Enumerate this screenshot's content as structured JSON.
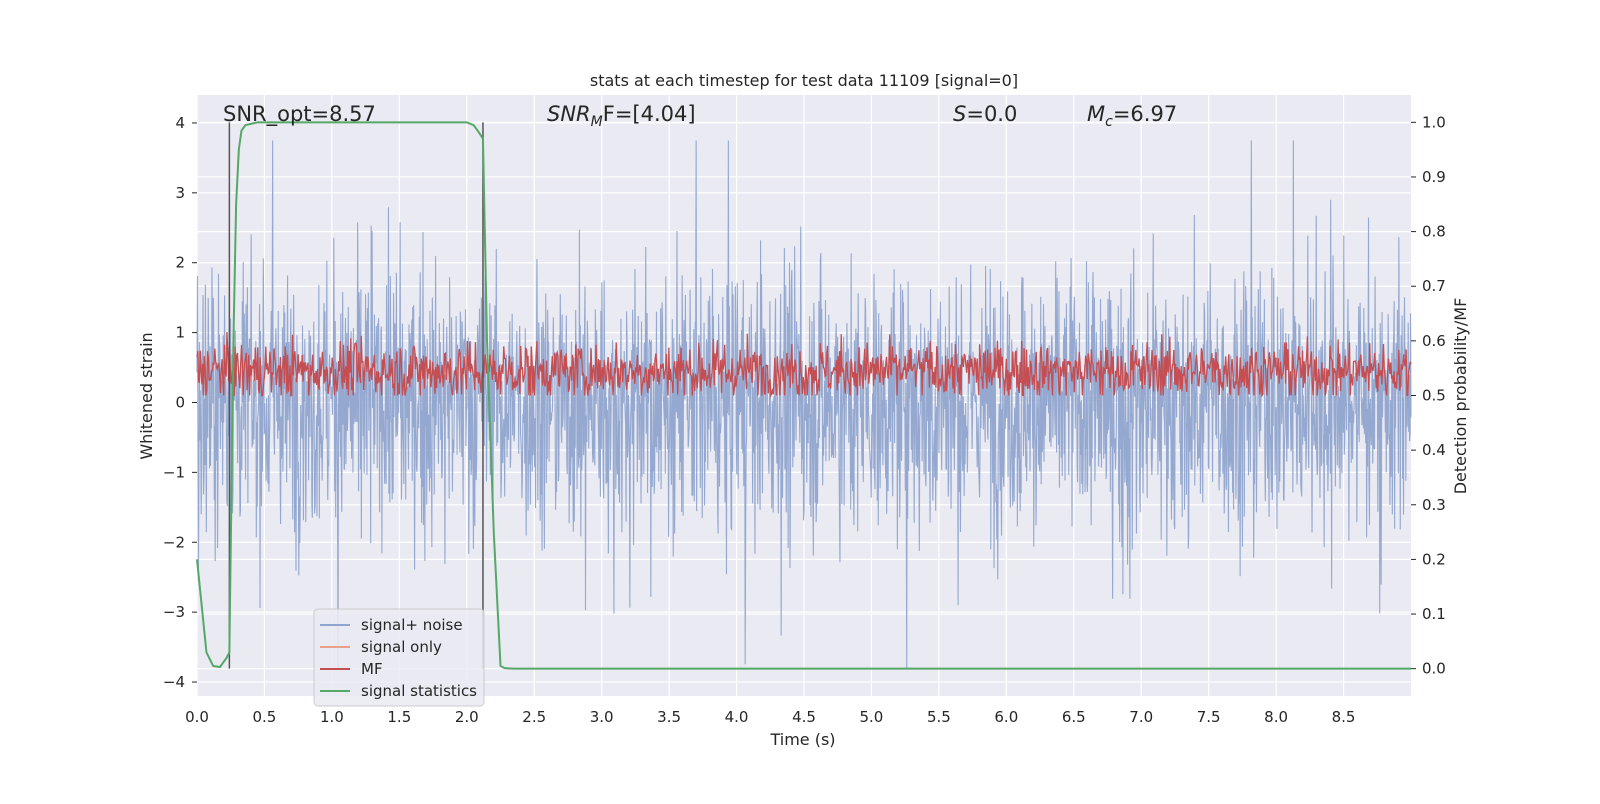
{
  "chart_data": {
    "type": "line",
    "title": "stats at each timestep for test data 11109 [signal=0]",
    "xlabel": "Time (s)",
    "ylabel_left": "Whitened strain",
    "ylabel_right": "Detection probability/MF",
    "xlim": [
      0.0,
      9.0
    ],
    "ylim_left": [
      -4.2,
      4.4
    ],
    "ylim_right": [
      -0.05,
      1.05
    ],
    "x_ticks": [
      "0.0",
      "0.5",
      "1.0",
      "1.5",
      "2.0",
      "2.5",
      "3.0",
      "3.5",
      "4.0",
      "4.5",
      "5.0",
      "5.5",
      "6.0",
      "6.5",
      "7.0",
      "7.5",
      "8.0",
      "8.5"
    ],
    "y_ticks_left": [
      "4",
      "3",
      "2",
      "1",
      "0",
      "−1",
      "−2",
      "−3",
      "−4"
    ],
    "y_ticks_right": [
      "1.0",
      "0.9",
      "0.8",
      "0.7",
      "0.6",
      "0.5",
      "0.4",
      "0.3",
      "0.2",
      "0.1",
      "0.0"
    ],
    "grid": true,
    "legend_position": "lower-left",
    "annotations": {
      "snr_opt": "SNR_opt=8.57",
      "snr_mf_sym": "SNR",
      "snr_mf_sub": "M",
      "snr_mf_rest": "F=[4.04]",
      "s_sym": "S",
      "s_rest": "=0.0",
      "mc_sym": "M",
      "mc_sub": "c",
      "mc_rest": "=6.97"
    },
    "vlines_s": [
      0.24,
      2.12
    ],
    "series": [
      {
        "name": "signal+ noise",
        "color": "#8fa4ce",
        "axis": "left",
        "description": "whitened noise, approx range -3.8 to 3.7"
      },
      {
        "name": "signal only",
        "color": "#e8a087",
        "axis": "left",
        "values": []
      },
      {
        "name": "MF",
        "color": "#c44e52",
        "axis": "right",
        "description": "noise between approx 0.50 and 0.63"
      },
      {
        "name": "signal statistics",
        "color": "#55a868",
        "axis": "right",
        "x": [
          0.0,
          0.07,
          0.12,
          0.17,
          0.22,
          0.24,
          0.27,
          0.29,
          0.31,
          0.33,
          0.36,
          0.45,
          0.6,
          1.0,
          1.5,
          1.8,
          2.0,
          2.05,
          2.08,
          2.12,
          2.15,
          2.2,
          2.25,
          2.28,
          2.35,
          9.0
        ],
        "values": [
          0.2,
          0.03,
          0.005,
          0.003,
          0.02,
          0.03,
          0.6,
          0.85,
          0.95,
          0.985,
          0.995,
          1.0,
          1.0,
          1.0,
          1.0,
          1.0,
          1.0,
          0.995,
          0.985,
          0.97,
          0.6,
          0.25,
          0.005,
          0.001,
          0.0,
          0.0
        ]
      }
    ]
  }
}
